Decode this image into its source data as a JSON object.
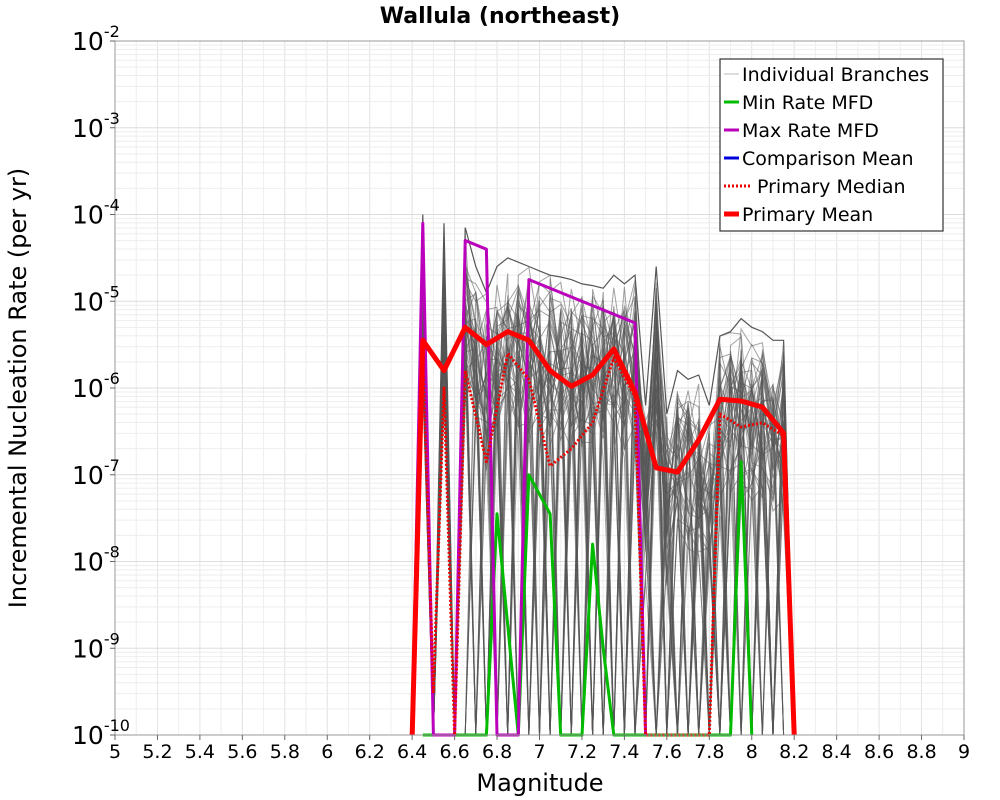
{
  "chart_data": {
    "type": "line",
    "title": "Wallula (northeast)",
    "xlabel": "Magnitude",
    "ylabel": "Incremental Nucleation Rate (per yr)",
    "xlim": [
      5,
      9
    ],
    "ylim_log10": [
      -10,
      -2
    ],
    "y_scale": "log",
    "grid": true,
    "legend_position": "top-right",
    "x_ticks": [
      5,
      5.2,
      5.4,
      5.6,
      5.8,
      6,
      6.2,
      6.4,
      6.6,
      6.8,
      7,
      7.2,
      7.4,
      7.6,
      7.8,
      8,
      8.2,
      8.4,
      8.6,
      8.8,
      9
    ],
    "x_tick_labels": [
      "5",
      "5.2",
      "5.4",
      "5.6",
      "5.8",
      "6",
      "6.2",
      "6.4",
      "6.6",
      "6.8",
      "7",
      "7.2",
      "7.4",
      "7.6",
      "7.8",
      "8",
      "8.2",
      "8.4",
      "8.6",
      "8.8",
      "9"
    ],
    "y_tick_exponents": [
      "-2",
      "-3",
      "-4",
      "-5",
      "-6",
      "-7",
      "-8",
      "-9",
      "-10"
    ],
    "y_tick_base": "10",
    "legend": [
      {
        "label": "Individual Branches",
        "color": "#bbbbbb",
        "style": "solid",
        "width": "thin"
      },
      {
        "label": "Min Rate MFD",
        "color": "#00bb00",
        "style": "solid",
        "width": "medium"
      },
      {
        "label": "Max Rate MFD",
        "color": "#bb00bb",
        "style": "solid",
        "width": "medium"
      },
      {
        "label": "Comparison Mean",
        "color": "#0000dd",
        "style": "solid",
        "width": "medium"
      },
      {
        "label": "Primary Median",
        "color": "#ee0000",
        "style": "dotted",
        "width": "medium"
      },
      {
        "label": "Primary Mean",
        "color": "#ff0000",
        "style": "solid",
        "width": "thick"
      }
    ],
    "branch_band": {
      "name": "Individual Branches",
      "color": "#555555",
      "count_drawn": 55,
      "upper_envelope": [
        [
          6.4,
          -10
        ],
        [
          6.45,
          -4.0
        ],
        [
          6.5,
          -10
        ],
        [
          6.55,
          -4.1
        ],
        [
          6.6,
          -10
        ],
        [
          6.65,
          -4.15
        ],
        [
          6.7,
          -4.6
        ],
        [
          6.75,
          -4.9
        ],
        [
          6.8,
          -4.6
        ],
        [
          6.85,
          -4.5
        ],
        [
          6.9,
          -4.55
        ],
        [
          6.95,
          -4.6
        ],
        [
          7.0,
          -4.65
        ],
        [
          7.05,
          -4.7
        ],
        [
          7.1,
          -4.72
        ],
        [
          7.15,
          -4.75
        ],
        [
          7.2,
          -4.8
        ],
        [
          7.25,
          -4.82
        ],
        [
          7.3,
          -4.85
        ],
        [
          7.35,
          -4.7
        ],
        [
          7.4,
          -4.8
        ],
        [
          7.45,
          -4.7
        ],
        [
          7.5,
          -6.2
        ],
        [
          7.55,
          -4.6
        ],
        [
          7.6,
          -6.3
        ],
        [
          7.65,
          -5.8
        ],
        [
          7.7,
          -5.9
        ],
        [
          7.75,
          -5.85
        ],
        [
          7.8,
          -6.2
        ],
        [
          7.85,
          -5.4
        ],
        [
          7.9,
          -5.35
        ],
        [
          7.95,
          -5.2
        ],
        [
          8.0,
          -5.3
        ],
        [
          8.05,
          -5.35
        ],
        [
          8.1,
          -5.45
        ],
        [
          8.15,
          -5.45
        ],
        [
          8.2,
          -10
        ]
      ]
    },
    "series": [
      {
        "name": "Min Rate MFD",
        "color": "#00bb00",
        "x": [
          6.45,
          6.75,
          6.8,
          6.9,
          6.95,
          7.05,
          7.1,
          7.2,
          7.25,
          7.3,
          7.35,
          7.9,
          7.95,
          8.0
        ],
        "log10_y": [
          -10,
          -10,
          -7.45,
          -10,
          -7.0,
          -7.45,
          -10,
          -10,
          -7.8,
          -9.0,
          -10,
          -10,
          -6.85,
          -10
        ]
      },
      {
        "name": "Max Rate MFD",
        "color": "#bb00bb",
        "x": [
          6.4,
          6.45,
          6.5,
          6.6,
          6.65,
          6.75,
          6.8,
          6.9,
          6.95,
          7.45,
          7.5
        ],
        "log10_y": [
          -10,
          -4.1,
          -10,
          -10,
          -4.3,
          -4.4,
          -10,
          -10,
          -4.75,
          -5.25,
          -10
        ]
      },
      {
        "name": "Primary Median",
        "color": "#ee0000",
        "x": [
          6.4,
          6.45,
          6.5,
          6.55,
          6.6,
          6.65,
          6.75,
          6.85,
          6.95,
          7.05,
          7.15,
          7.25,
          7.35,
          7.45,
          7.5,
          7.8,
          7.85,
          7.95,
          8.05,
          8.15,
          8.2
        ],
        "log10_y": [
          -10,
          -5.6,
          -9.5,
          -6.0,
          -10,
          -5.8,
          -6.85,
          -5.6,
          -5.9,
          -6.9,
          -6.7,
          -6.4,
          -5.65,
          -6.1,
          -10,
          -10,
          -6.3,
          -6.45,
          -6.4,
          -6.55,
          -10
        ]
      },
      {
        "name": "Primary Mean",
        "color": "#ff0000",
        "x": [
          6.4,
          6.45,
          6.55,
          6.65,
          6.75,
          6.85,
          6.95,
          7.05,
          7.15,
          7.25,
          7.35,
          7.45,
          7.55,
          7.65,
          7.75,
          7.85,
          7.95,
          8.05,
          8.15,
          8.2
        ],
        "log10_y": [
          -10,
          -5.45,
          -5.8,
          -5.3,
          -5.5,
          -5.35,
          -5.45,
          -5.8,
          -5.98,
          -5.85,
          -5.55,
          -6.05,
          -6.92,
          -6.97,
          -6.6,
          -6.13,
          -6.15,
          -6.22,
          -6.52,
          -10
        ]
      }
    ]
  }
}
